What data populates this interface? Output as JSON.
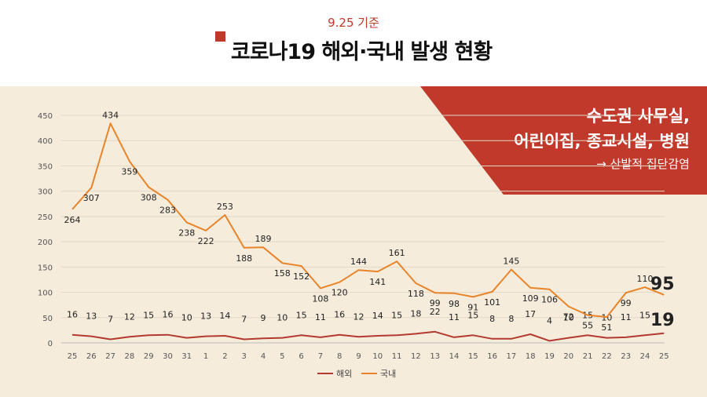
{
  "header": {
    "date": "9.25 기준",
    "title": "코로나19 해외·국내 발생 현황"
  },
  "banner": {
    "line1": "수도권 사무실,",
    "line2": "어린이집, 종교시설, 병원",
    "line3": "→ 산발적 집단감염"
  },
  "colors": {
    "overseas": "#b23a2e",
    "domestic": "#e8842a",
    "accent": "#c0392b",
    "background": "#f5ecdc"
  },
  "chart_data": {
    "type": "line",
    "title": "",
    "xlabel": "",
    "ylabel": "",
    "ylim": [
      0,
      450
    ],
    "yticks": [
      0,
      50,
      100,
      150,
      200,
      250,
      300,
      350,
      400,
      450
    ],
    "grid": true,
    "legend_position": "bottom",
    "categories": [
      "25",
      "26",
      "27",
      "28",
      "29",
      "30",
      "31",
      "1",
      "2",
      "3",
      "4",
      "5",
      "6",
      "7",
      "8",
      "9",
      "10",
      "11",
      "12",
      "13",
      "14",
      "15",
      "16",
      "17",
      "18",
      "19",
      "20",
      "21",
      "22",
      "23",
      "24",
      "25"
    ],
    "series": [
      {
        "name": "해외",
        "values": [
          16,
          13,
          7,
          12,
          15,
          16,
          10,
          13,
          14,
          7,
          9,
          10,
          15,
          11,
          16,
          12,
          14,
          15,
          18,
          22,
          11,
          15,
          8,
          8,
          17,
          4,
          10,
          15,
          10,
          11,
          15,
          19
        ]
      },
      {
        "name": "국내",
        "values": [
          264,
          307,
          434,
          359,
          308,
          283,
          238,
          222,
          253,
          188,
          189,
          158,
          152,
          108,
          120,
          144,
          141,
          161,
          118,
          99,
          98,
          91,
          101,
          145,
          109,
          106,
          72,
          55,
          51,
          99,
          110,
          95
        ]
      }
    ],
    "emphasized_last": {
      "overseas": "19",
      "domestic": "95"
    }
  }
}
